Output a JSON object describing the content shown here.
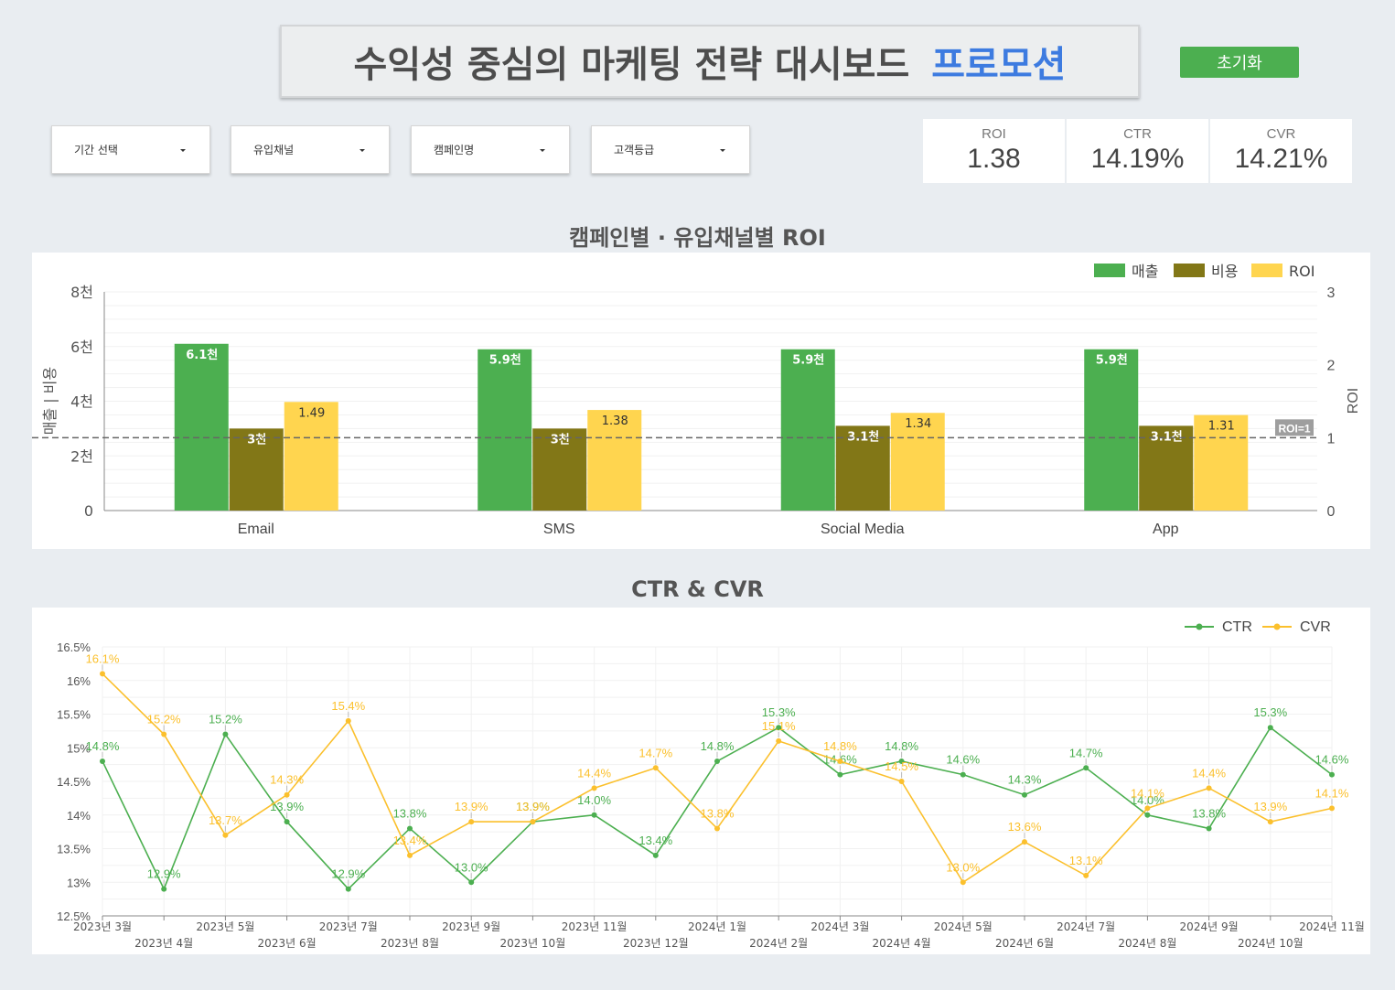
{
  "header": {
    "title": "수익성 중심의 마케팅 전략 대시보드",
    "title_accent": "프로모션",
    "reset_label": "초기화"
  },
  "filters": [
    {
      "label": "기간 선택"
    },
    {
      "label": "유입채널"
    },
    {
      "label": "캠페인명"
    },
    {
      "label": "고객등급"
    }
  ],
  "kpis": [
    {
      "label": "ROI",
      "value": "1.38"
    },
    {
      "label": "CTR",
      "value": "14.19%"
    },
    {
      "label": "CVR",
      "value": "14.21%"
    }
  ],
  "colors": {
    "green": "#4caf50",
    "olive": "#827717",
    "yellow": "#ffd54f",
    "accent": "#3d7be0",
    "ctr_line": "#4caf50",
    "cvr_line": "#fbc02d"
  },
  "chart_data": [
    {
      "type": "bar",
      "title": "캠페인별 · 유입채널별 ROI",
      "categories": [
        "Email",
        "SMS",
        "Social Media",
        "App"
      ],
      "series": [
        {
          "name": "매출",
          "axis": "left",
          "values": [
            6.1,
            5.9,
            5.9,
            5.9
          ],
          "labels": [
            "6.1천",
            "5.9천",
            "5.9천",
            "5.9천"
          ]
        },
        {
          "name": "비용",
          "axis": "left",
          "values": [
            3.0,
            3.0,
            3.1,
            3.1
          ],
          "labels": [
            "3천",
            "3천",
            "3.1천",
            "3.1천"
          ]
        },
        {
          "name": "ROI",
          "axis": "right",
          "values": [
            1.49,
            1.38,
            1.34,
            1.31
          ],
          "labels": [
            "1.49",
            "1.38",
            "1.34",
            "1.31"
          ]
        }
      ],
      "ylabel": "매출 | 비용",
      "y2label": "ROI",
      "ylim": [
        0,
        8
      ],
      "y2lim": [
        0,
        3
      ],
      "yticks": [
        "0",
        "2천",
        "4천",
        "6천",
        "8천"
      ],
      "y2ticks": [
        "0",
        "1",
        "2",
        "3"
      ],
      "reference_line": {
        "axis": "right",
        "value": 1,
        "label": "ROI=1"
      },
      "legend": "top-right",
      "grid": true
    },
    {
      "type": "line",
      "title": "CTR & CVR",
      "x": [
        "2023년 3월",
        "2023년 4월",
        "2023년 5월",
        "2023년 6월",
        "2023년 7월",
        "2023년 8월",
        "2023년 9월",
        "2023년 10월",
        "2023년 11월",
        "2023년 12월",
        "2024년 1월",
        "2024년 2월",
        "2024년 3월",
        "2024년 4월",
        "2024년 5월",
        "2024년 6월",
        "2024년 7월",
        "2024년 8월",
        "2024년 9월",
        "2024년 10월",
        "2024년 11월"
      ],
      "series": [
        {
          "name": "CTR",
          "values": [
            14.8,
            12.9,
            15.2,
            13.9,
            12.9,
            13.8,
            13.0,
            13.9,
            14.0,
            13.4,
            14.8,
            15.3,
            14.6,
            14.8,
            14.6,
            14.3,
            14.7,
            14.0,
            13.8,
            15.3,
            14.6
          ]
        },
        {
          "name": "CVR",
          "values": [
            16.1,
            15.2,
            13.7,
            14.3,
            15.4,
            13.4,
            13.9,
            13.9,
            14.4,
            14.7,
            13.8,
            15.1,
            14.8,
            14.5,
            13.0,
            13.6,
            13.1,
            14.1,
            14.4,
            13.9,
            14.1
          ]
        }
      ],
      "ylim": [
        12.5,
        16.5
      ],
      "yticks": [
        "12.5%",
        "13%",
        "13.5%",
        "14%",
        "14.5%",
        "15%",
        "15.5%",
        "16%",
        "16.5%"
      ],
      "legend": "top-right",
      "grid": true
    }
  ]
}
